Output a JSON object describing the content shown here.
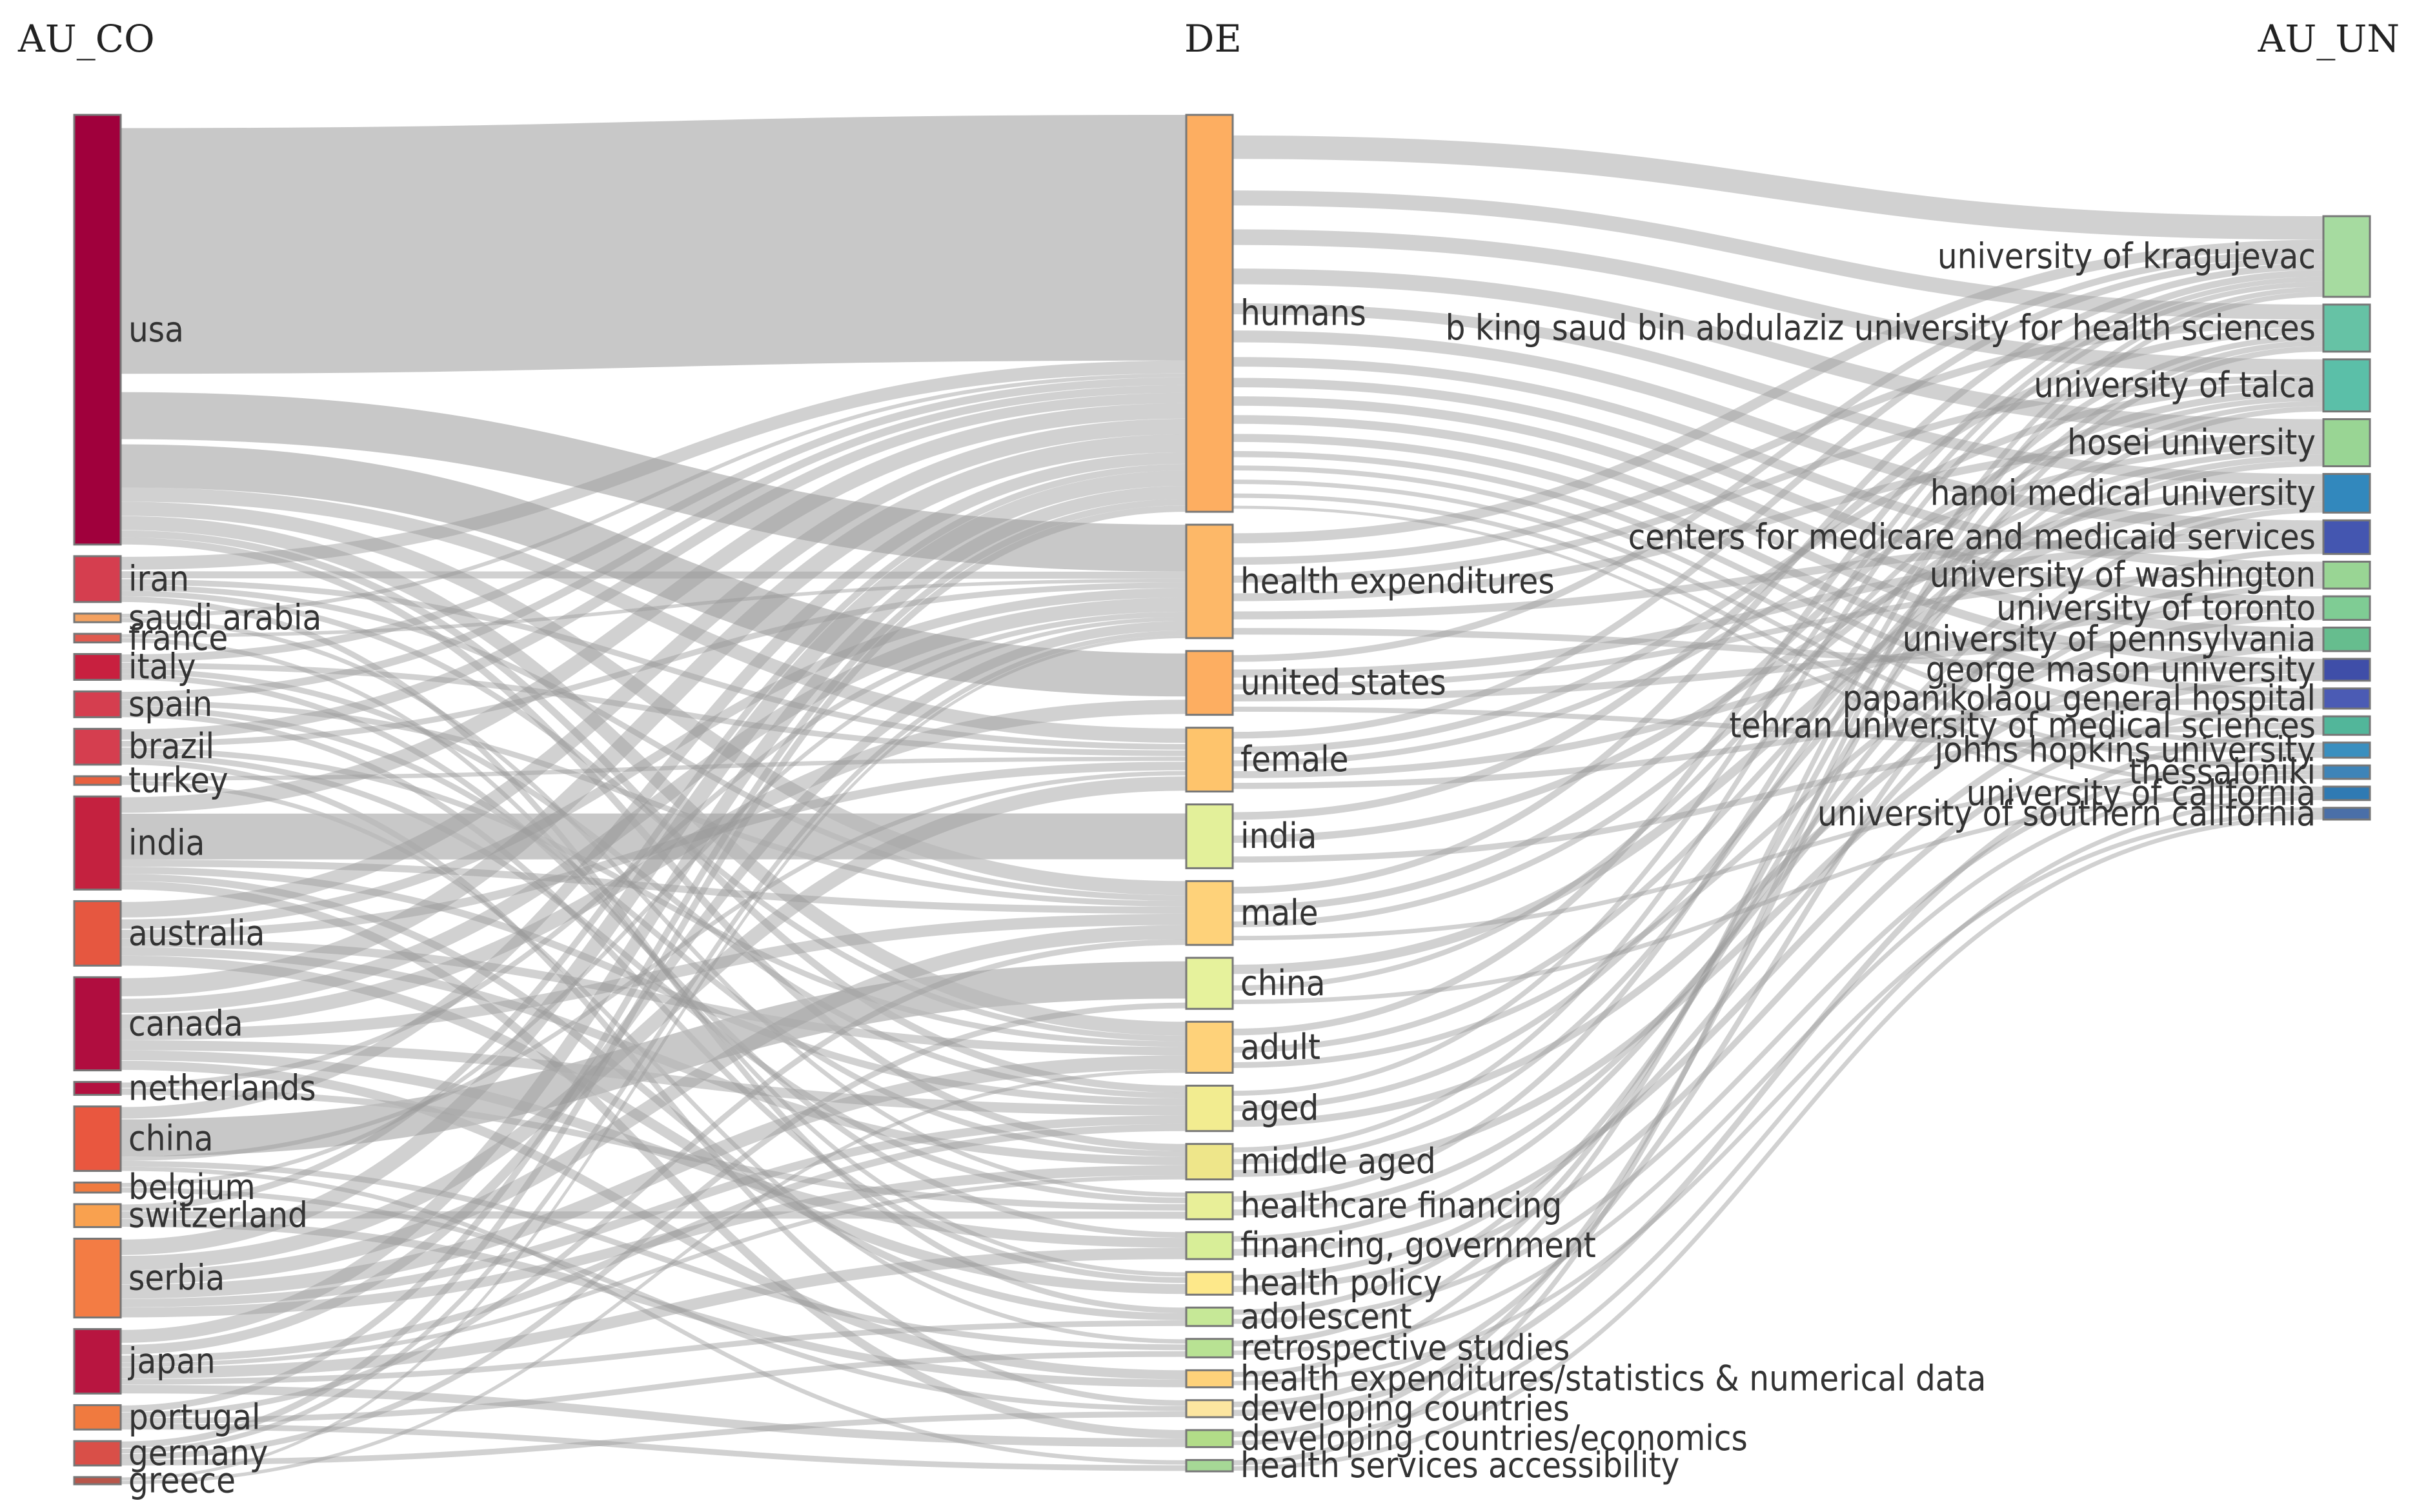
{
  "columns": [
    {
      "key": "left",
      "title": "AU_CO"
    },
    {
      "key": "mid",
      "title": "DE"
    },
    {
      "key": "right",
      "title": "AU_UN"
    }
  ],
  "nodes": {
    "left": [
      {
        "label": "usa",
        "weight": 30,
        "color": "#a0003c"
      },
      {
        "label": "iran",
        "weight": 3.2,
        "color": "#d53e4f"
      },
      {
        "label": "saudi arabia",
        "weight": 0.6,
        "color": "#f4a261"
      },
      {
        "label": "france",
        "weight": 0.6,
        "color": "#e05a4f"
      },
      {
        "label": "italy",
        "weight": 1.8,
        "color": "#c8203f"
      },
      {
        "label": "spain",
        "weight": 1.8,
        "color": "#d53e4f"
      },
      {
        "label": "brazil",
        "weight": 2.5,
        "color": "#d53e4f"
      },
      {
        "label": "turkey",
        "weight": 0.6,
        "color": "#e8603f"
      },
      {
        "label": "india",
        "weight": 6.5,
        "color": "#c4213f"
      },
      {
        "label": "australia",
        "weight": 4.5,
        "color": "#e65740"
      },
      {
        "label": "canada",
        "weight": 6.5,
        "color": "#b00d3f"
      },
      {
        "label": "netherlands",
        "weight": 0.9,
        "color": "#b3103f"
      },
      {
        "label": "china",
        "weight": 4.5,
        "color": "#e9573f"
      },
      {
        "label": "belgium",
        "weight": 0.7,
        "color": "#f07b3f"
      },
      {
        "label": "switzerland",
        "weight": 1.6,
        "color": "#f9a14f"
      },
      {
        "label": "serbia",
        "weight": 5.5,
        "color": "#f37c44"
      },
      {
        "label": "japan",
        "weight": 4.5,
        "color": "#b81540"
      },
      {
        "label": "portugal",
        "weight": 1.7,
        "color": "#f07a3f"
      },
      {
        "label": "germany",
        "weight": 1.7,
        "color": "#d94f48"
      },
      {
        "label": "greece",
        "weight": 0.5,
        "color": "#b8564a"
      }
    ],
    "mid": [
      {
        "label": "humans",
        "weight": 28,
        "color": "#fdae61"
      },
      {
        "label": "health expenditures",
        "weight": 8,
        "color": "#fdb868"
      },
      {
        "label": "united states",
        "weight": 4.5,
        "color": "#fdae61"
      },
      {
        "label": "female",
        "weight": 4.5,
        "color": "#fec46c"
      },
      {
        "label": "india",
        "weight": 4.5,
        "color": "#e3f09a"
      },
      {
        "label": "male",
        "weight": 4.5,
        "color": "#fed27a"
      },
      {
        "label": "china",
        "weight": 3.6,
        "color": "#e6f29c"
      },
      {
        "label": "adult",
        "weight": 3.6,
        "color": "#fed27a"
      },
      {
        "label": "aged",
        "weight": 3.2,
        "color": "#f2ec90"
      },
      {
        "label": "middle aged",
        "weight": 2.5,
        "color": "#eee68a"
      },
      {
        "label": "healthcare financing",
        "weight": 1.9,
        "color": "#e8ef98"
      },
      {
        "label": "financing, government",
        "weight": 1.9,
        "color": "#d8ee98"
      },
      {
        "label": "health policy",
        "weight": 1.6,
        "color": "#fde88a"
      },
      {
        "label": "adolescent",
        "weight": 1.3,
        "color": "#c6e897"
      },
      {
        "label": "retrospective studies",
        "weight": 1.3,
        "color": "#b8e293"
      },
      {
        "label": "health expenditures/statistics & numerical data",
        "weight": 1.2,
        "color": "#fed27a"
      },
      {
        "label": "developing countries",
        "weight": 1.2,
        "color": "#fde6a0"
      },
      {
        "label": "developing countries/economics",
        "weight": 1.2,
        "color": "#b2dc88"
      },
      {
        "label": "health services accessibility",
        "weight": 0.8,
        "color": "#a6d896"
      }
    ],
    "right": [
      {
        "label": "university of kragujevac",
        "weight": 4.8,
        "color": "#a6dba0"
      },
      {
        "label": "b king saud bin abdulaziz university for health sciences",
        "weight": 2.8,
        "color": "#66c2a5"
      },
      {
        "label": "university of talca",
        "weight": 3.1,
        "color": "#5bbfa8"
      },
      {
        "label": "hosei university",
        "weight": 2.8,
        "color": "#99d594"
      },
      {
        "label": "hanoi medical university",
        "weight": 2.3,
        "color": "#3288bd"
      },
      {
        "label": "centers for medicare and medicaid services",
        "weight": 2.0,
        "color": "#4456b0"
      },
      {
        "label": "university of washington",
        "weight": 1.6,
        "color": "#99d594"
      },
      {
        "label": "university of toronto",
        "weight": 1.4,
        "color": "#7fcc94"
      },
      {
        "label": "university of pennsylvania",
        "weight": 1.4,
        "color": "#66bd8e"
      },
      {
        "label": "george mason university",
        "weight": 1.3,
        "color": "#3f4ea8"
      },
      {
        "label": "papanikolaou general hospital",
        "weight": 1.2,
        "color": "#4b5bb4"
      },
      {
        "label": "tehran university of medical sciences",
        "weight": 1.1,
        "color": "#52b69a"
      },
      {
        "label": "johns hopkins university",
        "weight": 0.9,
        "color": "#3a8fbf"
      },
      {
        "label": "thessaloniki",
        "weight": 0.8,
        "color": "#3e84b8"
      },
      {
        "label": "university of california",
        "weight": 0.8,
        "color": "#2f7ab3"
      },
      {
        "label": "university of southern california",
        "weight": 0.7,
        "color": "#4a6fa8"
      }
    ]
  },
  "flows": {
    "left_mid": [
      [
        0,
        0,
        19
      ],
      [
        0,
        1,
        4
      ],
      [
        0,
        2,
        3
      ],
      [
        0,
        3,
        1
      ],
      [
        0,
        5,
        1
      ],
      [
        0,
        7,
        1
      ],
      [
        0,
        8,
        0.5
      ],
      [
        0,
        9,
        0.5
      ],
      [
        1,
        0,
        1
      ],
      [
        1,
        1,
        0.6
      ],
      [
        1,
        3,
        0.4
      ],
      [
        1,
        5,
        0.4
      ],
      [
        1,
        7,
        0.4
      ],
      [
        1,
        13,
        0.4
      ],
      [
        2,
        0,
        0.3
      ],
      [
        2,
        10,
        0.3
      ],
      [
        3,
        1,
        0.3
      ],
      [
        3,
        12,
        0.3
      ],
      [
        4,
        0,
        0.6
      ],
      [
        4,
        3,
        0.4
      ],
      [
        4,
        8,
        0.4
      ],
      [
        4,
        11,
        0.4
      ],
      [
        5,
        0,
        0.6
      ],
      [
        5,
        5,
        0.4
      ],
      [
        5,
        9,
        0.4
      ],
      [
        5,
        12,
        0.4
      ],
      [
        6,
        0,
        0.8
      ],
      [
        6,
        1,
        0.5
      ],
      [
        6,
        7,
        0.4
      ],
      [
        6,
        10,
        0.4
      ],
      [
        6,
        16,
        0.4
      ],
      [
        7,
        3,
        0.3
      ],
      [
        7,
        14,
        0.3
      ],
      [
        8,
        0,
        1.2
      ],
      [
        8,
        4,
        3.2
      ],
      [
        8,
        5,
        0.5
      ],
      [
        8,
        8,
        0.5
      ],
      [
        8,
        13,
        0.5
      ],
      [
        8,
        17,
        0.6
      ],
      [
        9,
        0,
        1.2
      ],
      [
        9,
        1,
        0.8
      ],
      [
        9,
        3,
        0.6
      ],
      [
        9,
        7,
        0.6
      ],
      [
        9,
        9,
        0.6
      ],
      [
        9,
        12,
        0.7
      ],
      [
        10,
        0,
        1.4
      ],
      [
        10,
        1,
        1.2
      ],
      [
        10,
        2,
        1
      ],
      [
        10,
        5,
        0.8
      ],
      [
        10,
        8,
        0.7
      ],
      [
        10,
        11,
        0.7
      ],
      [
        10,
        15,
        0.7
      ],
      [
        11,
        1,
        0.45
      ],
      [
        11,
        10,
        0.45
      ],
      [
        12,
        0,
        0.9
      ],
      [
        12,
        6,
        2.6
      ],
      [
        12,
        3,
        0.3
      ],
      [
        12,
        14,
        0.4
      ],
      [
        12,
        18,
        0.3
      ],
      [
        13,
        1,
        0.35
      ],
      [
        13,
        16,
        0.35
      ],
      [
        14,
        0,
        0.5
      ],
      [
        14,
        10,
        0.5
      ],
      [
        14,
        15,
        0.6
      ],
      [
        15,
        0,
        1.2
      ],
      [
        15,
        3,
        1
      ],
      [
        15,
        5,
        1
      ],
      [
        15,
        7,
        1
      ],
      [
        15,
        8,
        0.6
      ],
      [
        15,
        9,
        0.7
      ],
      [
        16,
        0,
        1
      ],
      [
        16,
        1,
        0.8
      ],
      [
        16,
        8,
        0.5
      ],
      [
        16,
        9,
        0.3
      ],
      [
        16,
        11,
        0.8
      ],
      [
        16,
        13,
        0.4
      ],
      [
        16,
        17,
        0.6
      ],
      [
        17,
        0,
        0.5
      ],
      [
        17,
        5,
        0.4
      ],
      [
        17,
        14,
        0.4
      ],
      [
        17,
        18,
        0.4
      ],
      [
        18,
        0,
        0.5
      ],
      [
        18,
        1,
        0.4
      ],
      [
        18,
        6,
        0.4
      ],
      [
        18,
        16,
        0.4
      ],
      [
        19,
        1,
        0.25
      ],
      [
        19,
        7,
        0.25
      ]
    ],
    "mid_right": [
      [
        0,
        0,
        1.4
      ],
      [
        0,
        1,
        0.8
      ],
      [
        0,
        2,
        0.9
      ],
      [
        0,
        3,
        0.8
      ],
      [
        0,
        4,
        0.6
      ],
      [
        0,
        5,
        0.6
      ],
      [
        0,
        6,
        0.5
      ],
      [
        0,
        7,
        0.4
      ],
      [
        0,
        8,
        0.4
      ],
      [
        0,
        9,
        0.4
      ],
      [
        0,
        10,
        0.4
      ],
      [
        0,
        11,
        0.3
      ],
      [
        0,
        12,
        0.3
      ],
      [
        0,
        13,
        0.3
      ],
      [
        0,
        14,
        0.3
      ],
      [
        0,
        15,
        0.2
      ],
      [
        1,
        0,
        0.6
      ],
      [
        1,
        1,
        0.4
      ],
      [
        1,
        2,
        0.4
      ],
      [
        1,
        3,
        0.4
      ],
      [
        1,
        5,
        0.4
      ],
      [
        1,
        9,
        0.3
      ],
      [
        2,
        0,
        0.4
      ],
      [
        2,
        5,
        0.4
      ],
      [
        2,
        6,
        0.3
      ],
      [
        2,
        8,
        0.3
      ],
      [
        2,
        12,
        0.3
      ],
      [
        3,
        0,
        0.4
      ],
      [
        3,
        2,
        0.4
      ],
      [
        3,
        3,
        0.3
      ],
      [
        3,
        7,
        0.3
      ],
      [
        3,
        10,
        0.3
      ],
      [
        4,
        1,
        0.4
      ],
      [
        4,
        4,
        0.4
      ],
      [
        4,
        11,
        0.3
      ],
      [
        5,
        0,
        0.4
      ],
      [
        5,
        2,
        0.4
      ],
      [
        5,
        3,
        0.3
      ],
      [
        5,
        13,
        0.3
      ],
      [
        6,
        4,
        0.5
      ],
      [
        6,
        2,
        0.3
      ],
      [
        6,
        14,
        0.3
      ],
      [
        7,
        0,
        0.4
      ],
      [
        7,
        3,
        0.3
      ],
      [
        7,
        6,
        0.3
      ],
      [
        8,
        0,
        0.3
      ],
      [
        8,
        3,
        0.3
      ],
      [
        8,
        7,
        0.3
      ],
      [
        9,
        0,
        0.3
      ],
      [
        9,
        2,
        0.3
      ],
      [
        9,
        8,
        0.3
      ],
      [
        10,
        1,
        0.3
      ],
      [
        10,
        5,
        0.3
      ],
      [
        11,
        4,
        0.3
      ],
      [
        11,
        9,
        0.3
      ],
      [
        12,
        6,
        0.3
      ],
      [
        12,
        10,
        0.3
      ],
      [
        13,
        2,
        0.3
      ],
      [
        13,
        12,
        0.3
      ],
      [
        14,
        1,
        0.3
      ],
      [
        14,
        13,
        0.3
      ],
      [
        15,
        0,
        0.3
      ],
      [
        15,
        15,
        0.3
      ],
      [
        16,
        4,
        0.3
      ],
      [
        16,
        11,
        0.3
      ],
      [
        17,
        1,
        0.3
      ],
      [
        17,
        14,
        0.3
      ],
      [
        18,
        0,
        0.3
      ],
      [
        18,
        15,
        0.3
      ]
    ]
  }
}
